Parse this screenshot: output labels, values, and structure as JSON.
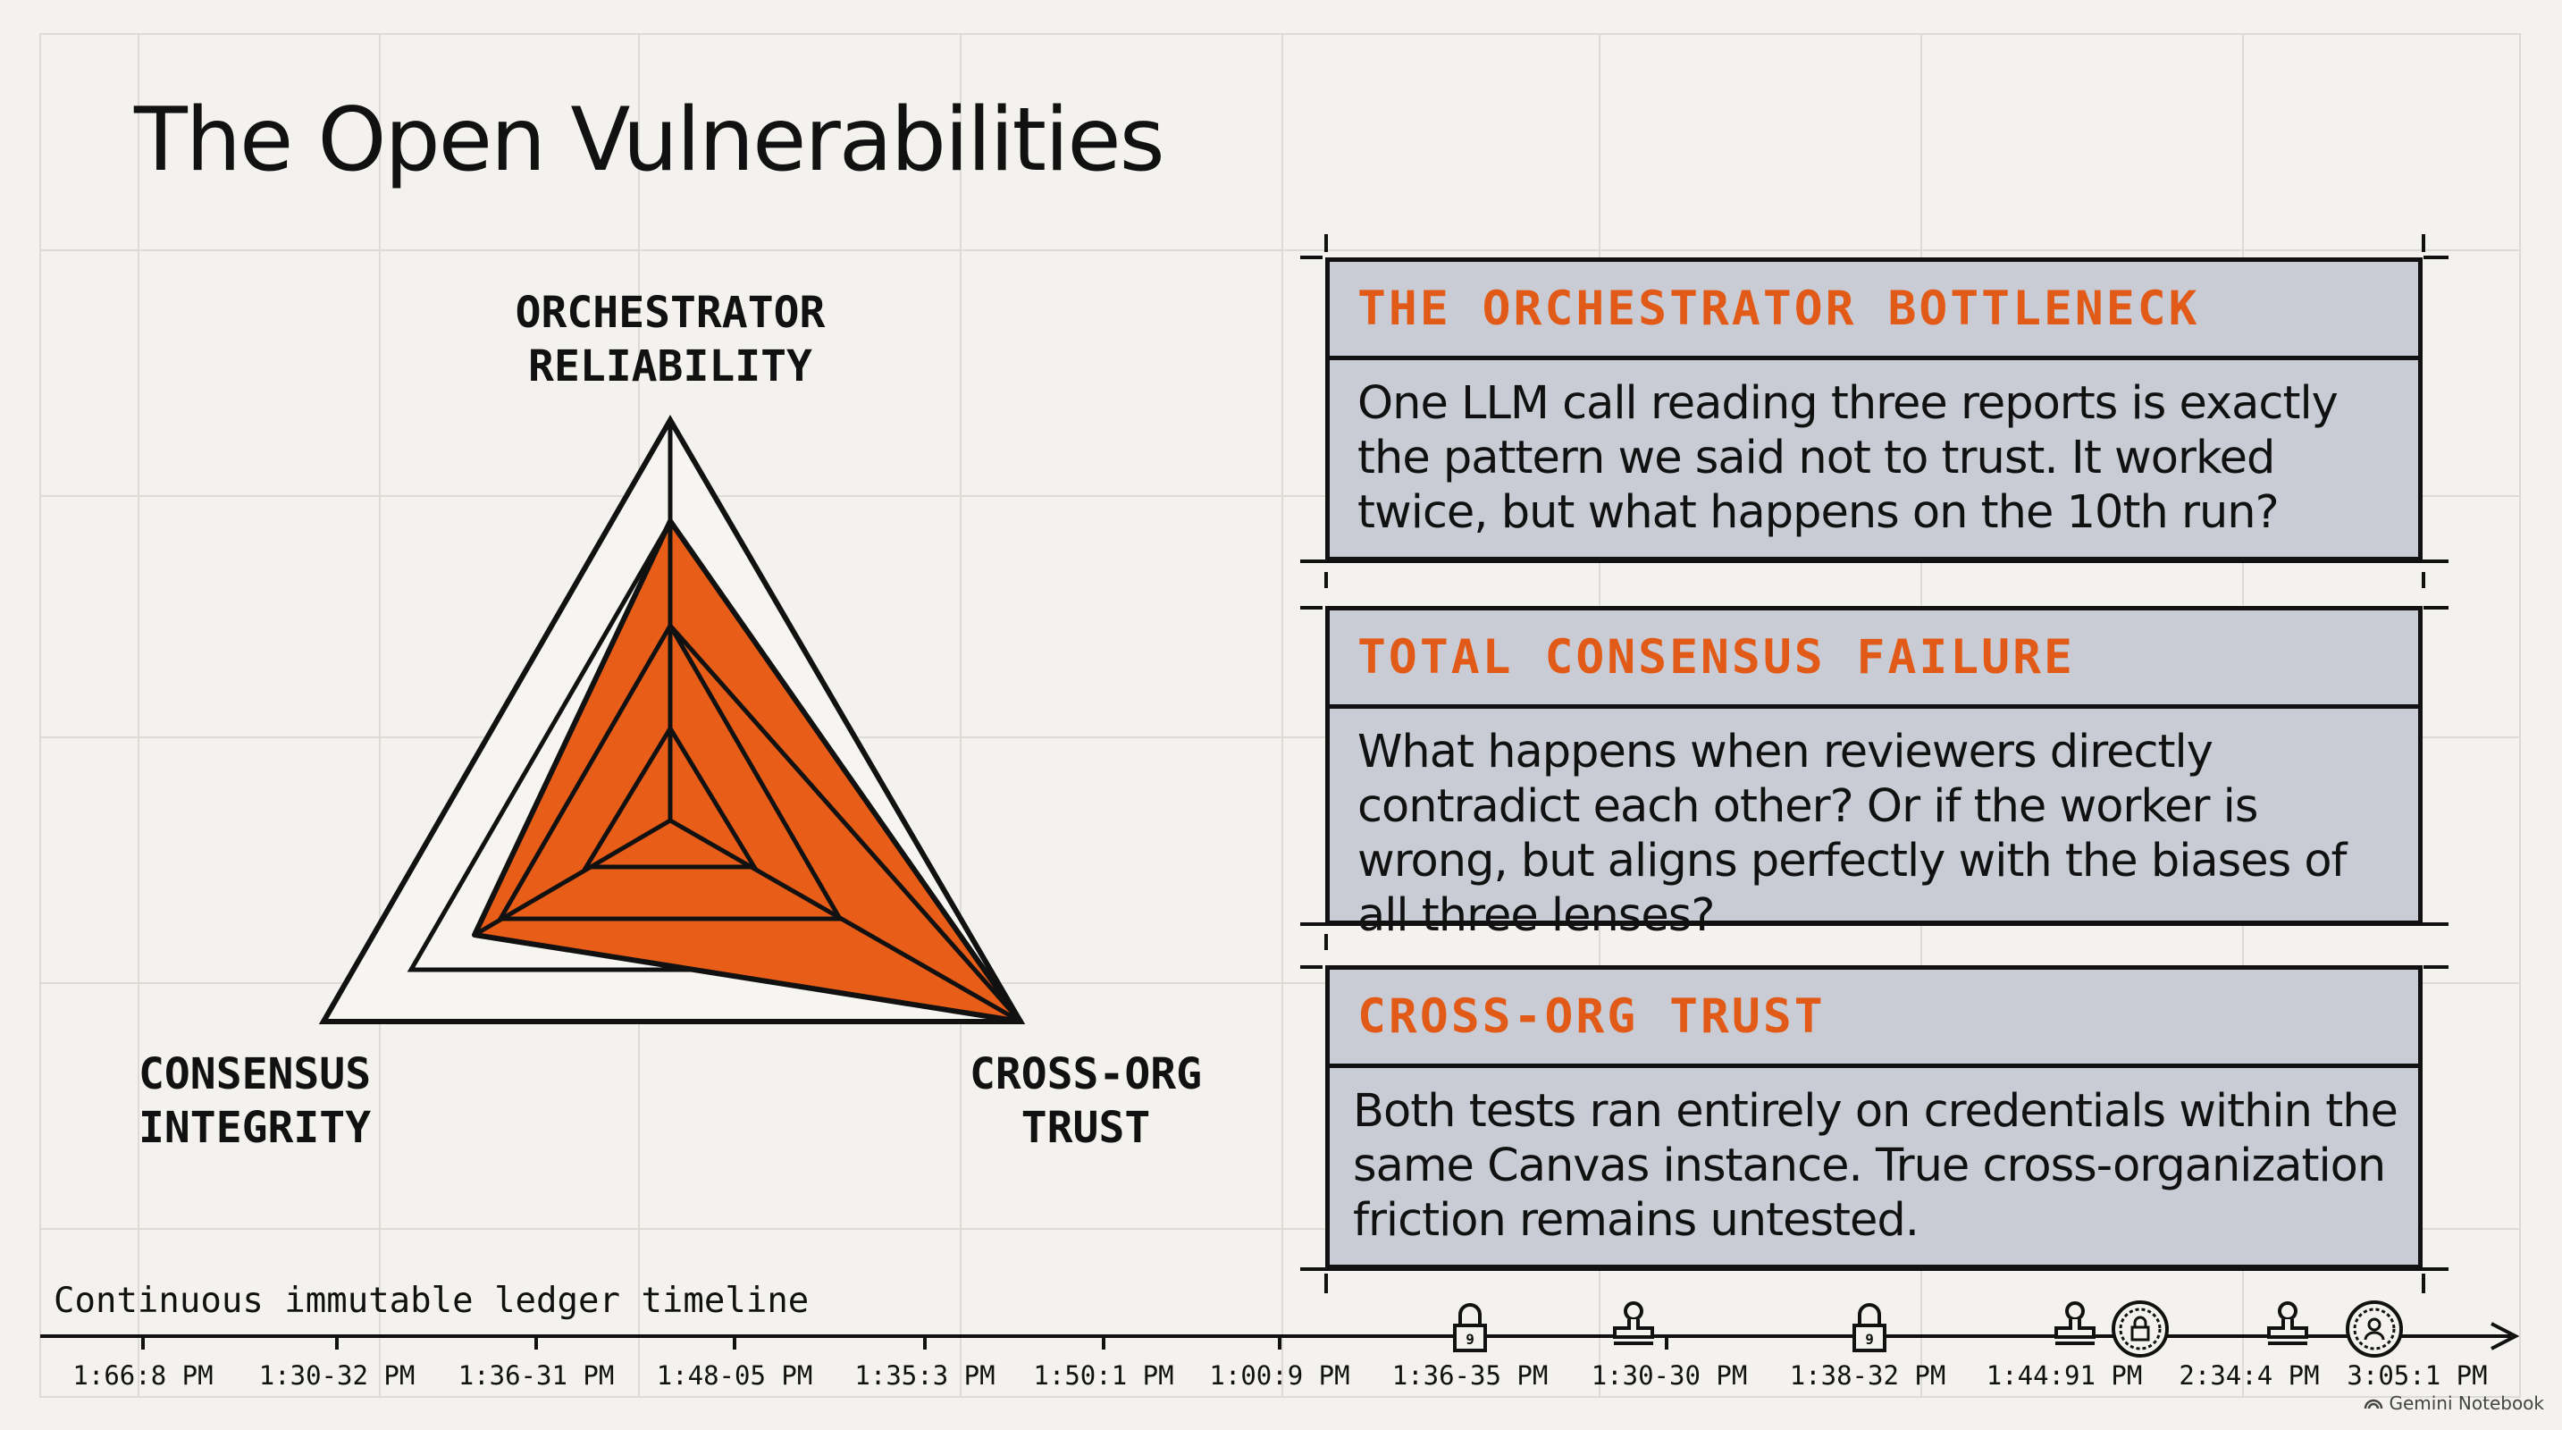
{
  "title": "The Open Vulnerabilities",
  "radar": {
    "axes": [
      {
        "label_lines": [
          "ORCHESTRATOR",
          "RELIABILITY"
        ]
      },
      {
        "label_lines": [
          "CONSENSUS",
          "INTEGRITY"
        ]
      },
      {
        "label_lines": [
          "CROSS-ORG",
          "TRUST"
        ]
      }
    ],
    "fill_color": "#e85d17",
    "stroke_color": "#111111"
  },
  "cards": [
    {
      "title": "THE ORCHESTRATOR BOTTLENECK",
      "body_lines": [
        "One LLM call reading three reports is exactly",
        "the pattern we said not to trust. It worked",
        "twice, but what happens on the 10th run?"
      ]
    },
    {
      "title": "TOTAL CONSENSUS FAILURE",
      "body_lines": [
        "What happens when reviewers directly",
        "contradict each other? Or if the worker is",
        "wrong, but aligns perfectly with the biases of",
        "all three lenses?"
      ]
    },
    {
      "title": "CROSS-ORG TRUST",
      "body_lines": [
        "Both tests ran entirely on credentials within the",
        "same Canvas instance. True cross-organization",
        "friction remains untested."
      ]
    }
  ],
  "timeline": {
    "caption": "Continuous immutable ledger timeline",
    "ticks": [
      "1:66:8 PM",
      "1:30-32 PM",
      "1:36-31 PM",
      "1:48-05 PM",
      "1:35:3 PM",
      "1:50:1 PM",
      "1:00:9 PM",
      "1:36-35 PM",
      "1:30-30 PM",
      "1:38-32 PM",
      "1:44:91 PM",
      "2:34:4 PM",
      "3:05:1 PM"
    ],
    "icons": [
      "lock-icon",
      "stamp-icon",
      "lock-icon",
      "stamp-icon",
      "seal-icon",
      "stamp-icon",
      "seal-icon"
    ]
  },
  "colors": {
    "accent": "#e25a18",
    "card_bg": "#c9ccd5",
    "background": "#f3f2ee",
    "ink": "#111111"
  },
  "watermark": "Gemini Notebook"
}
